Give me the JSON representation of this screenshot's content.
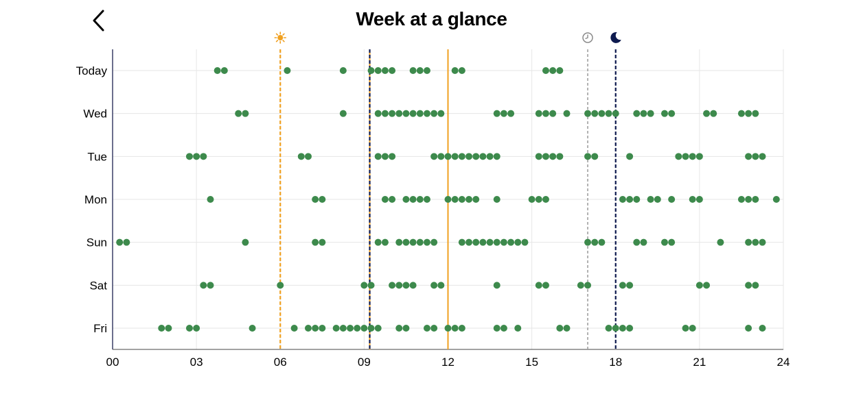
{
  "header": {
    "title": "Week at a glance",
    "back_icon": "chevron-left-icon"
  },
  "chart_data": {
    "type": "scatter",
    "xlim": [
      0,
      24
    ],
    "x_ticks": [
      "00",
      "03",
      "06",
      "09",
      "12",
      "15",
      "18",
      "21",
      "24"
    ],
    "categories": [
      "Today",
      "Wed",
      "Tue",
      "Mon",
      "Sun",
      "Sat",
      "Fri"
    ],
    "grid": true,
    "dot_color": "#3d8a4c",
    "reference_lines": [
      {
        "name": "sunrise",
        "x": 6.0,
        "style": "dashed",
        "color": "#f0a020",
        "icon": "sun-icon"
      },
      {
        "name": "now",
        "x": 9.2,
        "style": "solid",
        "color": "#f0a020",
        "icon": ""
      },
      {
        "name": "wake",
        "x": 9.2,
        "style": "dashed",
        "color": "#0e1a4f",
        "icon": ""
      },
      {
        "name": "noon",
        "x": 12.0,
        "style": "solid",
        "color": "#f0a020",
        "icon": ""
      },
      {
        "name": "schedule",
        "x": 17.0,
        "style": "dashed",
        "color": "#999999",
        "icon": "clock-icon"
      },
      {
        "name": "sleep",
        "x": 18.0,
        "style": "dashed",
        "color": "#0e1a4f",
        "icon": "moon-icon"
      }
    ],
    "series": [
      {
        "category": "Today",
        "x": [
          3.75,
          4.0,
          6.25,
          8.25,
          9.25,
          9.5,
          9.75,
          10.0,
          10.75,
          11.0,
          11.25,
          12.25,
          12.5,
          15.5,
          15.75,
          16.0
        ]
      },
      {
        "category": "Wed",
        "x": [
          4.5,
          4.75,
          8.25,
          9.5,
          9.75,
          10.0,
          10.25,
          10.5,
          10.75,
          11.0,
          11.25,
          11.5,
          11.75,
          13.75,
          14.0,
          14.25,
          15.25,
          15.5,
          15.75,
          16.25,
          17.0,
          17.25,
          17.5,
          17.75,
          18.0,
          18.75,
          19.0,
          19.25,
          19.75,
          20.0,
          21.25,
          21.5,
          22.5,
          22.75,
          23.0
        ]
      },
      {
        "category": "Tue",
        "x": [
          2.75,
          3.0,
          3.25,
          6.75,
          7.0,
          9.5,
          9.75,
          10.0,
          11.5,
          11.75,
          12.0,
          12.25,
          12.5,
          12.75,
          13.0,
          13.25,
          13.5,
          13.75,
          15.25,
          15.5,
          15.75,
          16.0,
          17.0,
          17.25,
          18.5,
          20.25,
          20.5,
          20.75,
          21.0,
          22.75,
          23.0,
          23.25
        ]
      },
      {
        "category": "Mon",
        "x": [
          3.5,
          7.25,
          7.5,
          9.75,
          10.0,
          10.5,
          10.75,
          11.0,
          11.25,
          12.0,
          12.25,
          12.5,
          12.75,
          13.0,
          13.75,
          15.0,
          15.25,
          15.5,
          18.25,
          18.5,
          18.75,
          19.25,
          19.5,
          20.0,
          20.75,
          21.0,
          22.5,
          22.75,
          23.0,
          23.75
        ]
      },
      {
        "category": "Sun",
        "x": [
          0.25,
          0.5,
          4.75,
          7.25,
          7.5,
          9.5,
          9.75,
          10.25,
          10.5,
          10.75,
          11.0,
          11.25,
          11.5,
          12.5,
          12.75,
          13.0,
          13.25,
          13.5,
          13.75,
          14.0,
          14.25,
          14.5,
          14.75,
          17.0,
          17.25,
          17.5,
          18.75,
          19.0,
          19.75,
          20.0,
          21.75,
          22.75,
          23.0,
          23.25
        ]
      },
      {
        "category": "Sat",
        "x": [
          3.25,
          3.5,
          6.0,
          9.0,
          9.25,
          10.0,
          10.25,
          10.5,
          10.75,
          11.5,
          11.75,
          13.75,
          15.25,
          15.5,
          16.75,
          17.0,
          18.25,
          18.5,
          21.0,
          21.25,
          22.75,
          23.0
        ]
      },
      {
        "category": "Fri",
        "x": [
          1.75,
          2.0,
          2.75,
          3.0,
          5.0,
          6.5,
          7.0,
          7.25,
          7.5,
          8.0,
          8.25,
          8.5,
          8.75,
          9.0,
          9.25,
          9.5,
          10.25,
          10.5,
          11.25,
          11.5,
          12.0,
          12.25,
          12.5,
          13.75,
          14.0,
          14.5,
          16.0,
          16.25,
          17.75,
          18.0,
          18.25,
          18.5,
          20.5,
          20.75,
          22.75,
          23.25
        ]
      }
    ]
  }
}
